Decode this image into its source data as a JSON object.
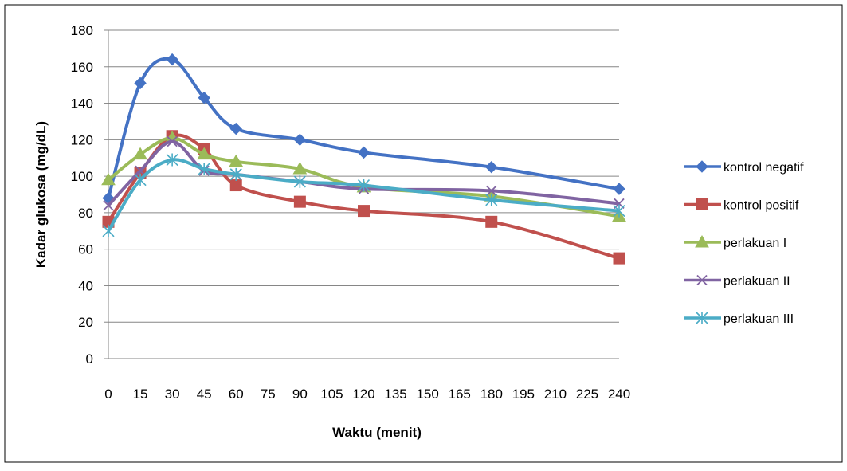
{
  "chart_data": {
    "type": "line",
    "title": "",
    "xlabel": "Waktu (menit)",
    "ylabel": "Kadar glukosa  (mg/dL)",
    "xlim": [
      0,
      240
    ],
    "ylim": [
      0,
      180
    ],
    "x_ticks": [
      0,
      15,
      30,
      45,
      60,
      75,
      90,
      105,
      120,
      135,
      150,
      165,
      180,
      195,
      210,
      225,
      240
    ],
    "x_tick_labels": [
      "0",
      "15",
      "30",
      "45",
      "60",
      "75",
      "90",
      "105",
      "120",
      "135",
      "150",
      "165",
      "180",
      "195",
      "210",
      "225",
      "240"
    ],
    "y_ticks": [
      0,
      20,
      40,
      60,
      80,
      100,
      120,
      140,
      160,
      180
    ],
    "y_tick_labels": [
      "0",
      "20",
      "40",
      "60",
      "80",
      "100",
      "120",
      "140",
      "160",
      "180"
    ],
    "grid": "horizontal",
    "legend_position": "right",
    "series": [
      {
        "name": "kontrol negatif",
        "color": "#4472C4",
        "marker": "diamond",
        "x": [
          0,
          15,
          30,
          45,
          60,
          90,
          120,
          180,
          240
        ],
        "values": [
          88,
          151,
          164,
          143,
          126,
          120,
          113,
          105,
          93
        ]
      },
      {
        "name": "kontrol positif",
        "color": "#C0504D",
        "marker": "square",
        "x": [
          0,
          15,
          30,
          45,
          60,
          90,
          120,
          180,
          240
        ],
        "values": [
          75,
          102,
          122,
          115,
          95,
          86,
          81,
          75,
          55
        ]
      },
      {
        "name": "perlakuan I",
        "color": "#9BBB59",
        "marker": "triangle",
        "x": [
          0,
          15,
          30,
          45,
          60,
          90,
          120,
          180,
          240
        ],
        "values": [
          98,
          112,
          121,
          112,
          108,
          104,
          94,
          89,
          78
        ]
      },
      {
        "name": "perlakuan II",
        "color": "#8064A2",
        "marker": "x",
        "x": [
          0,
          15,
          30,
          45,
          60,
          90,
          120,
          180,
          240
        ],
        "values": [
          84,
          103,
          119,
          103,
          101,
          97,
          93,
          92,
          85
        ]
      },
      {
        "name": "perlakuan III",
        "color": "#4BACC6",
        "marker": "star",
        "x": [
          0,
          15,
          30,
          45,
          60,
          90,
          120,
          180,
          240
        ],
        "values": [
          70,
          98,
          109,
          104,
          101,
          97,
          95,
          87,
          81
        ]
      }
    ]
  }
}
